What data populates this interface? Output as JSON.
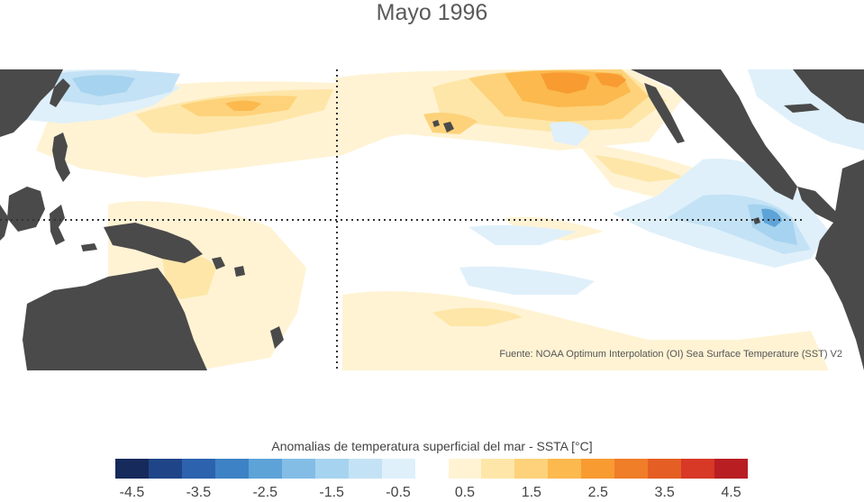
{
  "title": "Mayo 1996",
  "credit": "Fuente: NOAA Optimum Interpolation (OI) Sea Surface Temperature (SST) V2",
  "colorbar": {
    "title": "Anomalias de temperatura superficial del mar - SSTA  [°C]",
    "colors": [
      "#172a5c",
      "#1f4588",
      "#2c62ae",
      "#3d82c4",
      "#5ea3d8",
      "#83bde6",
      "#a6d3ef",
      "#c4e2f5",
      "#dff0fa",
      "#ffffff",
      "#fff3d4",
      "#fee6a8",
      "#fdd27a",
      "#fbb94e",
      "#f89b31",
      "#f07d28",
      "#e55e23",
      "#d83826",
      "#b81e22"
    ],
    "ticks": [
      "-4.5",
      "-3.5",
      "-2.5",
      "-1.5",
      "-0.5",
      "0.5",
      "1.5",
      "2.5",
      "3.5",
      "4.5"
    ]
  }
}
